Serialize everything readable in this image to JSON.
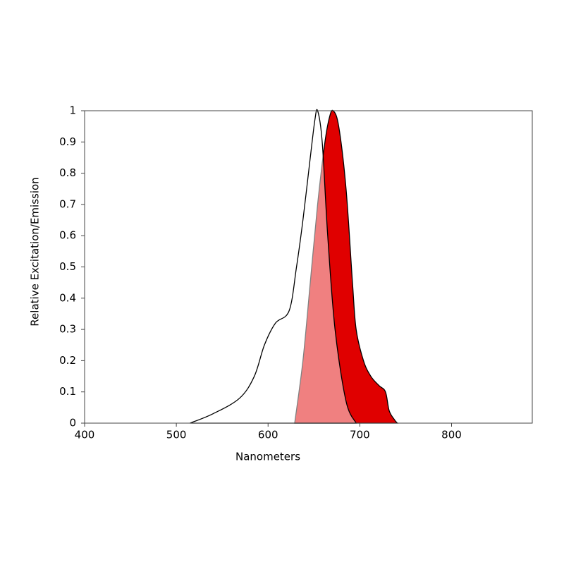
{
  "chart_data": {
    "type": "area",
    "x_label": "Nanometers",
    "y_label": "Relative Excitation/Emission",
    "xlim": [
      400,
      888
    ],
    "xticks": [
      400,
      500,
      600,
      700,
      800
    ],
    "ylim": [
      0,
      1
    ],
    "yticks": [
      0,
      0.1,
      0.2,
      0.3,
      0.4,
      0.5,
      0.6,
      0.7,
      0.8,
      0.9,
      1
    ],
    "grid": false,
    "series": [
      {
        "color": "#e00000",
        "fill_opacity": 1,
        "x": [
          629,
          638,
          646,
          654,
          662,
          667,
          671,
          677,
          685,
          692,
          696,
          704,
          712,
          721,
          728,
          732,
          738,
          741
        ],
        "values": [
          0,
          0.2,
          0.45,
          0.7,
          0.9,
          0.98,
          1.0,
          0.95,
          0.75,
          0.45,
          0.3,
          0.2,
          0.15,
          0.12,
          0.1,
          0.04,
          0.01,
          0
        ]
      },
      {
        "color": "#ffffff",
        "fill_opacity": 0.5,
        "x": [
          515,
          540,
          569,
          585,
          596,
          608,
          623,
          631,
          638,
          646,
          651,
          654,
          659,
          665,
          673,
          685,
          696
        ],
        "values": [
          0,
          0.03,
          0.08,
          0.15,
          0.25,
          0.32,
          0.36,
          0.5,
          0.65,
          0.85,
          0.97,
          1.0,
          0.9,
          0.6,
          0.3,
          0.07,
          0
        ]
      }
    ]
  }
}
